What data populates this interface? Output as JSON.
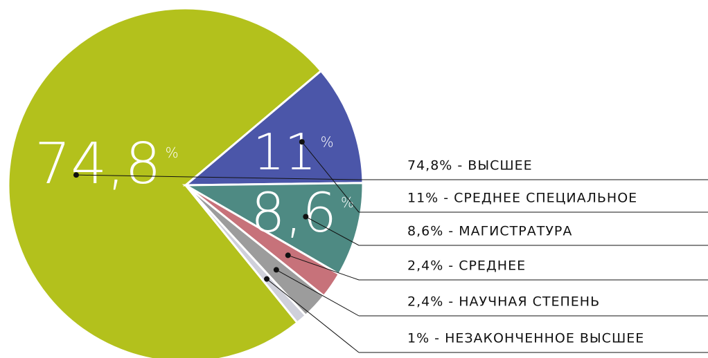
{
  "chart_data": {
    "type": "pie",
    "categories": [
      "74,8% - ВЫСШЕЕ",
      "11% - СРЕДНЕЕ СПЕЦИАЛЬНОЕ",
      "8,6% - МАГИСТРАТУРА",
      "2,4% - СРЕДНЕЕ",
      "2,4% - НАУЧНАЯ СТЕПЕНЬ",
      "1% - НЕЗАКОНЧЕННОЕ ВЫСШЕЕ"
    ],
    "values": [
      74.8,
      11,
      8.6,
      2.4,
      2.4,
      1
    ],
    "value_labels": [
      "74,8",
      "11",
      "8,6",
      null,
      null,
      null
    ],
    "value_label_unit": "%",
    "colors": [
      "#b3c11c",
      "#4b56a9",
      "#4e8a83",
      "#c7727a",
      "#9c9c9c",
      "#cfd0da"
    ]
  }
}
